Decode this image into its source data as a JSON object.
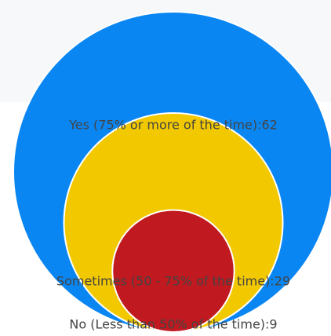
{
  "chart_data": {
    "type": "bubble",
    "title": "",
    "categories": [
      "Yes (75% or more of the time)",
      "Sometimes (50 - 75% of the time)",
      "No (Less than 50% of the time)"
    ],
    "values": [
      62,
      29,
      9
    ],
    "labels": [
      "Yes (75% or more of the time):62",
      "Sometimes (50 - 75% of the time):29",
      "No (Less than 50% of the time):9"
    ],
    "colors": [
      "#0a86f2",
      "#f2c800",
      "#c0191f"
    ],
    "legend": "none",
    "grid": false
  }
}
